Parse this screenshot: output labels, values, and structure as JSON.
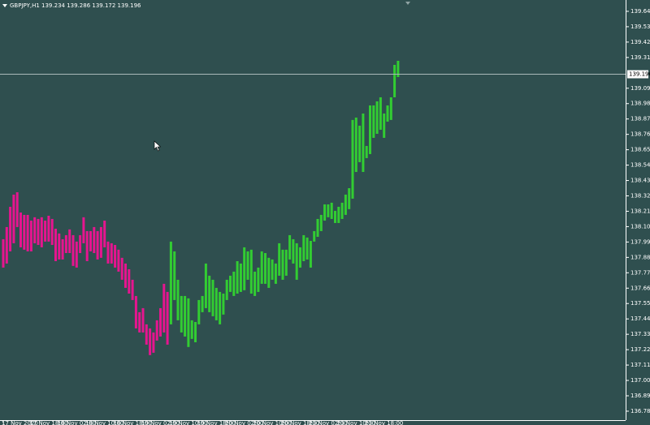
{
  "chart_data": {
    "type": "range-bar",
    "title": "GBPJPY,H1  139.234 139.286 139.172 139.196",
    "last_price": 139.196,
    "ylim": [
      136.722,
      139.727
    ],
    "yticks": [
      139.646,
      139.536,
      139.426,
      139.316,
      139.096,
      138.986,
      138.876,
      138.766,
      138.656,
      138.546,
      138.436,
      138.326,
      138.216,
      138.106,
      137.996,
      137.886,
      137.776,
      137.666,
      137.556,
      137.446,
      137.336,
      137.226,
      137.116,
      137.006,
      136.896,
      136.786
    ],
    "categories": [
      "17 Nov 2020",
      null,
      null,
      null,
      null,
      null,
      null,
      null,
      "17 Nov 18:00",
      null,
      null,
      null,
      null,
      null,
      null,
      null,
      "18 Nov 02:00",
      null,
      null,
      null,
      null,
      null,
      null,
      null,
      "18 Nov 10:00",
      null,
      null,
      null,
      null,
      null,
      null,
      null,
      "18 Nov 18:00",
      null,
      null,
      null,
      null,
      null,
      null,
      null,
      "19 Nov 02:00",
      null,
      null,
      null,
      null,
      null,
      null,
      null,
      "19 Nov 10:00",
      null,
      null,
      null,
      null,
      null,
      null,
      null,
      "19 Nov 18:00",
      null,
      null,
      null,
      null,
      null,
      null,
      null,
      "20 Nov 02:00",
      null,
      null,
      null,
      null,
      null,
      null,
      null,
      "20 Nov 10:00",
      null,
      null,
      null,
      null,
      null,
      null,
      null,
      "20 Nov 18:00",
      null,
      null,
      null,
      null,
      null,
      null,
      null,
      "23 Nov 02:00",
      null,
      null,
      null,
      null,
      null,
      null,
      null,
      "23 Nov 10:00",
      null,
      null,
      null,
      null,
      null,
      null,
      null,
      "23 Nov 18:00",
      null,
      null,
      null,
      null,
      null,
      null,
      null,
      null,
      null
    ],
    "series": [
      {
        "color": "#e6158f",
        "high": [
          138.016,
          138.103,
          138.248,
          138.335,
          138.352,
          138.207,
          138.19,
          138.19,
          138.149,
          138.173,
          138.161,
          138.173,
          138.149,
          138.184,
          138.161,
          138.091,
          138.057,
          138.016,
          138.045,
          138.086,
          138.045,
          137.999,
          138.045,
          138.173,
          138.074,
          138.074,
          138.103,
          138.074,
          138.103,
          138.149,
          137.999,
          137.987,
          137.975,
          137.941,
          137.883,
          137.842,
          137.801,
          137.726,
          137.61,
          137.494,
          137.523,
          137.407,
          137.378,
          137.349,
          137.436,
          137.523,
          137.697,
          137.639,
          null,
          null,
          null,
          null,
          null,
          null,
          null,
          null,
          null,
          null,
          null,
          null,
          null,
          null,
          null,
          null,
          null,
          null,
          null,
          null,
          null,
          null,
          null,
          null,
          null,
          null,
          null,
          null,
          null,
          null,
          null,
          null,
          null,
          null,
          null,
          null,
          null,
          null,
          null,
          null,
          null,
          null,
          null,
          null,
          null,
          null,
          null,
          null,
          null,
          null,
          null,
          null,
          null,
          null,
          null,
          null,
          null,
          null,
          null,
          null,
          null,
          null,
          null,
          null,
          null,
          null
        ],
        "low": [
          137.813,
          137.842,
          137.929,
          137.987,
          138.103,
          137.958,
          137.941,
          137.929,
          137.929,
          137.987,
          137.975,
          137.958,
          137.999,
          137.999,
          137.975,
          137.859,
          137.871,
          137.871,
          137.917,
          137.917,
          137.825,
          137.813,
          137.917,
          137.987,
          137.859,
          137.929,
          137.917,
          137.871,
          137.883,
          137.958,
          137.842,
          137.842,
          137.813,
          137.784,
          137.726,
          137.668,
          137.627,
          137.581,
          137.378,
          137.349,
          137.349,
          137.262,
          137.187,
          137.204,
          137.291,
          137.32,
          137.349,
          137.262,
          null,
          null,
          null,
          null,
          null,
          null,
          null,
          null,
          null,
          null,
          null,
          null,
          null,
          null,
          null,
          null,
          null,
          null,
          null,
          null,
          null,
          null,
          null,
          null,
          null,
          null,
          null,
          null,
          null,
          null,
          null,
          null,
          null,
          null,
          null,
          null,
          null,
          null,
          null,
          null,
          null,
          null,
          null,
          null,
          null,
          null,
          null,
          null,
          null,
          null,
          null,
          null,
          null,
          null,
          null,
          null,
          null,
          null,
          null,
          null,
          null,
          null,
          null,
          null,
          null,
          null
        ]
      },
      {
        "color": "#32cd32",
        "high": [
          null,
          null,
          null,
          null,
          null,
          null,
          null,
          null,
          null,
          null,
          null,
          null,
          null,
          null,
          null,
          null,
          null,
          null,
          null,
          null,
          null,
          null,
          null,
          null,
          null,
          null,
          null,
          null,
          null,
          null,
          null,
          null,
          null,
          null,
          null,
          null,
          null,
          null,
          null,
          null,
          null,
          null,
          null,
          null,
          null,
          null,
          null,
          null,
          137.999,
          137.929,
          137.726,
          137.61,
          137.61,
          137.593,
          137.436,
          137.424,
          137.581,
          137.61,
          137.842,
          137.755,
          137.726,
          137.668,
          137.639,
          137.627,
          137.726,
          137.755,
          137.784,
          137.859,
          137.842,
          137.958,
          137.929,
          137.941,
          137.784,
          137.813,
          137.929,
          137.917,
          137.883,
          137.871,
          137.842,
          137.987,
          137.941,
          137.941,
          138.045,
          138.016,
          137.987,
          137.958,
          138.045,
          138.028,
          138.004,
          138.074,
          138.161,
          138.19,
          138.265,
          138.265,
          138.277,
          138.219,
          138.248,
          138.277,
          138.335,
          138.381,
          138.869,
          138.886,
          138.828,
          138.915,
          138.683,
          138.973,
          138.973,
          139.002,
          139.031,
          138.915,
          138.973,
          139.031,
          139.263,
          139.292
        ],
        "low": [
          null,
          null,
          null,
          null,
          null,
          null,
          null,
          null,
          null,
          null,
          null,
          null,
          null,
          null,
          null,
          null,
          null,
          null,
          null,
          null,
          null,
          null,
          null,
          null,
          null,
          null,
          null,
          null,
          null,
          null,
          null,
          null,
          null,
          null,
          null,
          null,
          null,
          null,
          null,
          null,
          null,
          null,
          null,
          null,
          null,
          null,
          null,
          null,
          137.407,
          137.581,
          137.436,
          137.349,
          137.32,
          137.245,
          137.303,
          137.279,
          137.407,
          137.494,
          137.523,
          137.494,
          137.465,
          137.436,
          137.407,
          137.477,
          137.581,
          137.639,
          137.61,
          137.627,
          137.639,
          137.651,
          137.726,
          137.627,
          137.61,
          137.639,
          137.697,
          137.697,
          137.668,
          137.726,
          137.697,
          137.755,
          137.726,
          137.755,
          137.871,
          137.842,
          137.726,
          137.813,
          137.859,
          137.871,
          137.813,
          137.999,
          138.033,
          138.074,
          138.149,
          138.173,
          138.161,
          138.132,
          138.132,
          138.161,
          138.19,
          138.231,
          138.306,
          138.497,
          138.567,
          138.497,
          138.596,
          138.625,
          138.741,
          138.77,
          138.799,
          138.741,
          138.857,
          138.869,
          139.031,
          139.176
        ]
      }
    ]
  }
}
